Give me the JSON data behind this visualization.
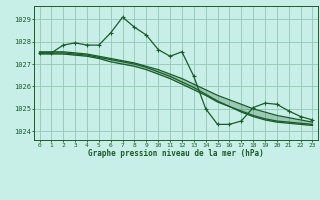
{
  "bg_color": "#c8eee8",
  "grid_color": "#99ccbb",
  "line_color": "#1a5c28",
  "xlabel": "Graphe pression niveau de la mer (hPa)",
  "xlim": [
    -0.5,
    23.5
  ],
  "ylim": [
    1023.6,
    1029.6
  ],
  "yticks": [
    1024,
    1025,
    1026,
    1027,
    1028,
    1029
  ],
  "xticks": [
    0,
    1,
    2,
    3,
    4,
    5,
    6,
    7,
    8,
    9,
    10,
    11,
    12,
    13,
    14,
    15,
    16,
    17,
    18,
    19,
    20,
    21,
    22,
    23
  ],
  "series1": [
    1027.5,
    1027.5,
    1027.85,
    1027.95,
    1027.85,
    1027.85,
    1028.4,
    1029.1,
    1028.65,
    1028.3,
    1027.65,
    1027.35,
    1027.55,
    1026.45,
    1025.0,
    1024.3,
    1024.3,
    1024.45,
    1025.05,
    1025.25,
    1025.2,
    1024.9,
    1024.65,
    1024.5
  ],
  "series2": [
    1027.55,
    1027.55,
    1027.55,
    1027.5,
    1027.45,
    1027.35,
    1027.25,
    1027.15,
    1027.05,
    1026.9,
    1026.75,
    1026.55,
    1026.35,
    1026.1,
    1025.85,
    1025.6,
    1025.4,
    1025.2,
    1025.0,
    1024.85,
    1024.7,
    1024.6,
    1024.5,
    1024.4
  ],
  "series3": [
    1027.45,
    1027.45,
    1027.45,
    1027.4,
    1027.35,
    1027.25,
    1027.1,
    1027.0,
    1026.9,
    1026.75,
    1026.55,
    1026.35,
    1026.1,
    1025.85,
    1025.6,
    1025.3,
    1025.1,
    1024.85,
    1024.65,
    1024.5,
    1024.4,
    1024.35,
    1024.3,
    1024.25
  ],
  "series4": [
    1027.5,
    1027.5,
    1027.5,
    1027.45,
    1027.4,
    1027.3,
    1027.2,
    1027.1,
    1027.0,
    1026.85,
    1026.65,
    1026.45,
    1026.2,
    1025.95,
    1025.65,
    1025.35,
    1025.1,
    1024.9,
    1024.7,
    1024.55,
    1024.45,
    1024.4,
    1024.35,
    1024.3
  ]
}
